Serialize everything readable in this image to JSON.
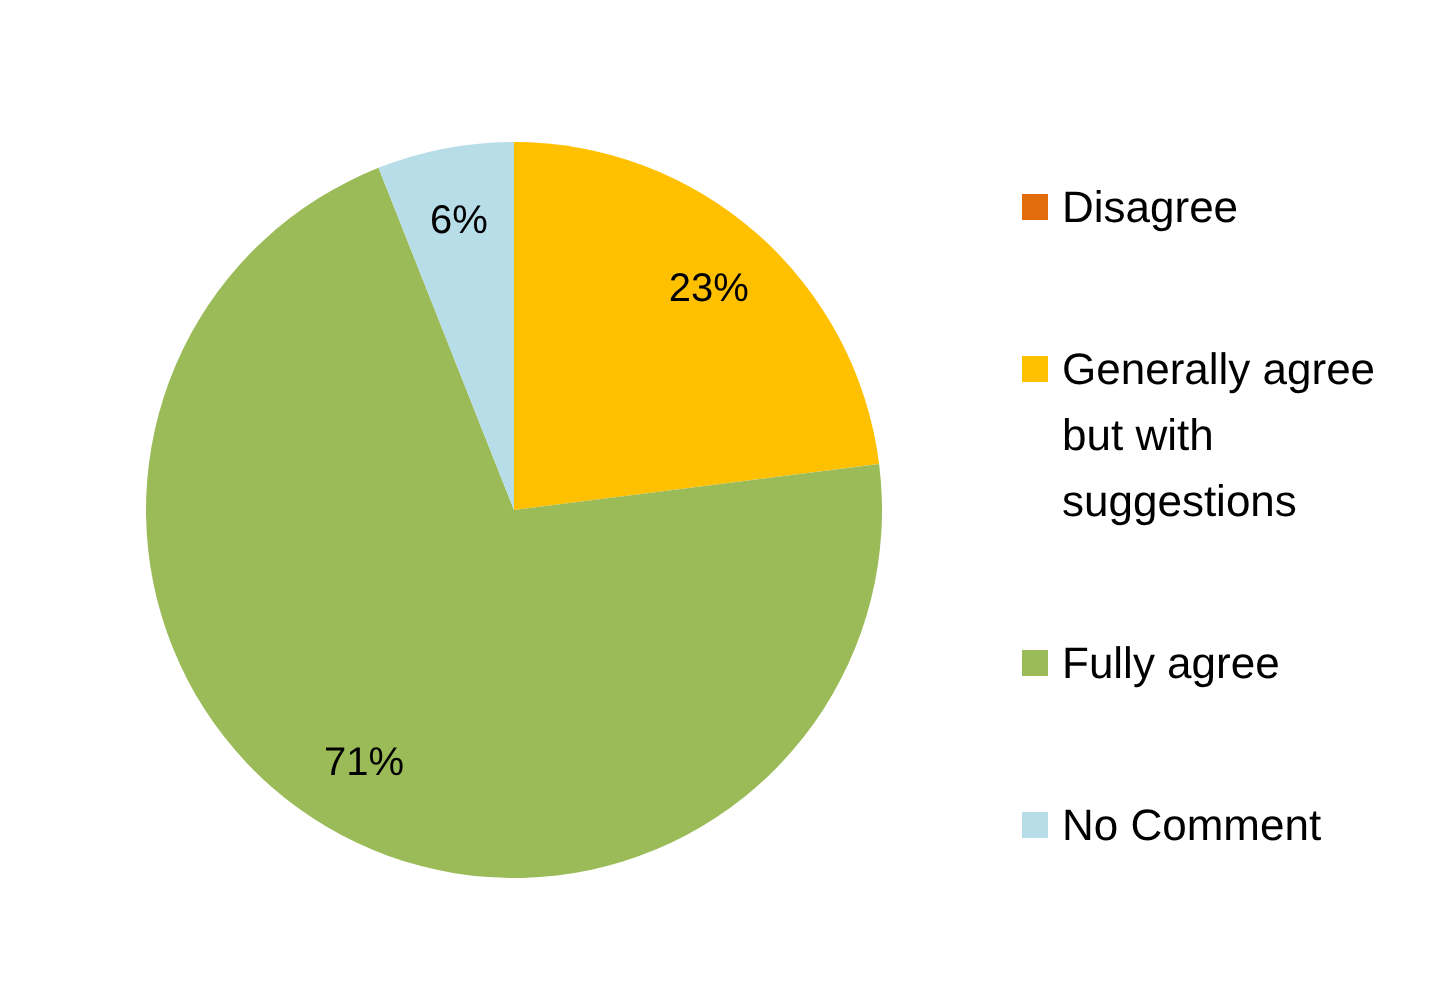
{
  "chart_data": {
    "type": "pie",
    "categories": [
      "Disagree",
      "Generally agree but with suggestions",
      "Fully agree",
      "No Comment"
    ],
    "values": [
      0,
      23,
      71,
      6
    ],
    "colors": [
      "#e36c0a",
      "#ffc000",
      "#9bbb59",
      "#b7dde8"
    ],
    "value_labels": [
      null,
      "23%",
      "71%",
      "6%"
    ],
    "legend": "right"
  }
}
